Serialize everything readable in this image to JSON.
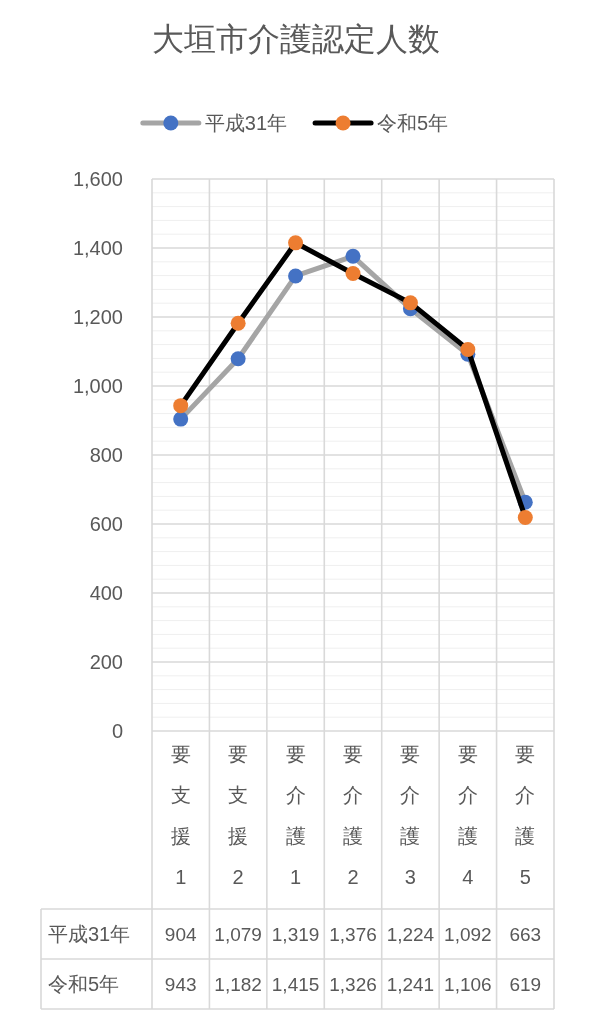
{
  "chart_data": {
    "type": "line",
    "title": "大垣市介護認定人数",
    "categories": [
      "要支援1",
      "要支援2",
      "要介護1",
      "要介護2",
      "要介護3",
      "要介護4",
      "要介護5"
    ],
    "series": [
      {
        "name": "平成31年",
        "color": "#a5a5a5",
        "colors": [
          "#4472c4",
          "#4472c4",
          "#4472c4",
          "#4472c4",
          "#4472c4",
          "#4472c4",
          "#4472c4"
        ],
        "values": [
          904,
          1079,
          1319,
          1376,
          1224,
          1092,
          663
        ],
        "value_labels": [
          "904",
          "1,079",
          "1,319",
          "1,376",
          "1,224",
          "1,092",
          "663"
        ]
      },
      {
        "name": "令和5年",
        "color": "#000000",
        "colors": [
          "#ed7d31",
          "#ed7d31",
          "#ed7d31",
          "#ed7d31",
          "#ed7d31",
          "#ed7d31",
          "#ed7d31"
        ],
        "values": [
          943,
          1182,
          1415,
          1326,
          1241,
          1106,
          619
        ],
        "value_labels": [
          "943",
          "1,182",
          "1,415",
          "1,326",
          "1,241",
          "1,106",
          "619"
        ]
      }
    ],
    "ylim": [
      0,
      1600
    ],
    "yticks": [
      0,
      {
        "value": 40,
        "label": null
      },
      {
        "value": 80,
        "label": null
      },
      {
        "value": 120,
        "label": null
      },
      {
        "value": 160,
        "label": null
      },
      200,
      {
        "value": 240,
        "label": null
      },
      {
        "value": 280,
        "label": null
      },
      {
        "value": 320,
        "label": null
      },
      {
        "value": 360,
        "label": null
      },
      400,
      {
        "value": 440,
        "label": null
      },
      {
        "value": 480,
        "label": null
      },
      {
        "value": 520,
        "label": null
      },
      {
        "value": 560,
        "label": null
      },
      600,
      {
        "value": 640,
        "label": null
      },
      {
        "value": 680,
        "label": null
      },
      {
        "value": 720,
        "label": null
      },
      {
        "value": 760,
        "label": null
      },
      800,
      {
        "value": 840,
        "label": null
      },
      {
        "value": 880,
        "label": null
      },
      {
        "value": 920,
        "label": null
      },
      {
        "value": 960,
        "label": null
      },
      {
        "value": 1000,
        "label": "1,000"
      },
      {
        "value": 1040,
        "label": null
      },
      {
        "value": 1080,
        "label": null
      },
      {
        "value": 1120,
        "label": null
      },
      {
        "value": 1160,
        "label": null
      },
      {
        "value": 1200,
        "label": "1,200"
      },
      {
        "value": 1240,
        "label": null
      },
      {
        "value": 1280,
        "label": null
      },
      {
        "value": 1320,
        "label": null
      },
      {
        "value": 1360,
        "label": null
      },
      {
        "value": 1400,
        "label": "1,400"
      },
      {
        "value": 1440,
        "label": null
      },
      {
        "value": 1480,
        "label": null
      },
      {
        "value": 1520,
        "label": null
      },
      {
        "value": 1560,
        "label": null
      },
      {
        "value": 1600,
        "label": "1,600"
      }
    ],
    "grid": true,
    "legend": "top",
    "marker": "circle",
    "line_style": "solid"
  }
}
